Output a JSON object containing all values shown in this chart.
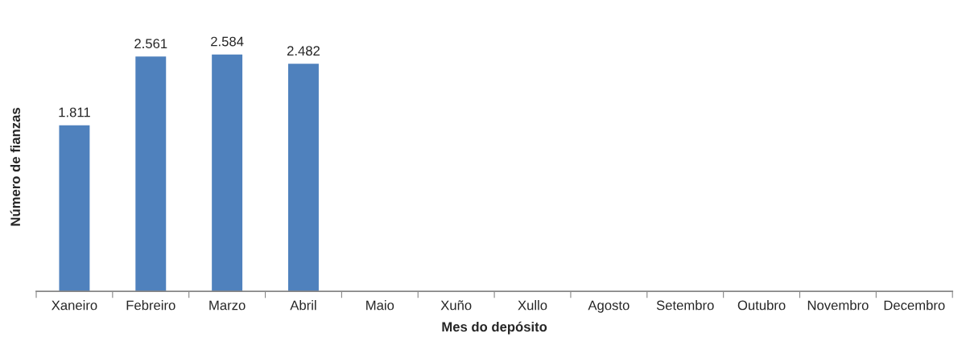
{
  "chart_data": {
    "type": "bar",
    "xlabel": "Mes do depósito",
    "ylabel": "Número de fianzas",
    "categories": [
      "Xaneiro",
      "Febreiro",
      "Marzo",
      "Abril",
      "Maio",
      "Xuño",
      "Xullo",
      "Agosto",
      "Setembro",
      "Outubro",
      "Novembro",
      "Decembro"
    ],
    "values": [
      1811,
      2561,
      2584,
      2482,
      null,
      null,
      null,
      null,
      null,
      null,
      null,
      null
    ],
    "value_labels": [
      "1.811",
      "2.561",
      "2.584",
      "2.482",
      null,
      null,
      null,
      null,
      null,
      null,
      null,
      null
    ],
    "color": "#4f81bd",
    "tick_labels": "x",
    "grid": false,
    "legend": false
  }
}
